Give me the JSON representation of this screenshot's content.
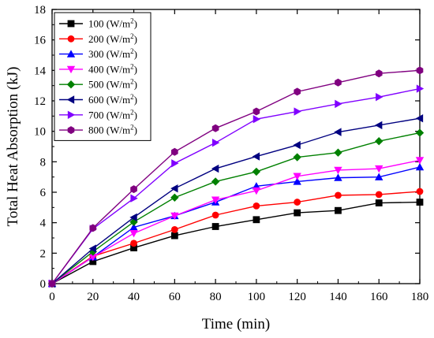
{
  "chart_data": {
    "type": "line",
    "xlabel": "Time (min)",
    "ylabel": "Total Heat Absorption (kJ)",
    "xlim": [
      0,
      180
    ],
    "ylim": [
      0,
      18
    ],
    "xticks": [
      0,
      20,
      40,
      60,
      80,
      100,
      120,
      140,
      160,
      180
    ],
    "yticks": [
      0,
      2,
      4,
      6,
      8,
      10,
      12,
      14,
      16,
      18
    ],
    "grid": false,
    "legend_position": "top-left",
    "x": [
      0,
      20,
      40,
      60,
      80,
      100,
      120,
      140,
      160,
      180
    ],
    "series": [
      {
        "name": "100 (W/m²)",
        "label_main": "100 (W/m",
        "label_sup": "2",
        "label_end": ")",
        "color": "#000000",
        "marker": "square",
        "values": [
          0,
          1.45,
          2.35,
          3.15,
          3.75,
          4.2,
          4.65,
          4.8,
          5.3,
          5.35
        ]
      },
      {
        "name": "200 (W/m²)",
        "label_main": "200 (W/m",
        "label_sup": "2",
        "label_end": ")",
        "color": "#ff0000",
        "marker": "circle",
        "values": [
          0,
          1.8,
          2.65,
          3.55,
          4.5,
          5.1,
          5.35,
          5.8,
          5.85,
          6.05
        ]
      },
      {
        "name": "300 (W/m²)",
        "label_main": "300 (W/m",
        "label_sup": "2",
        "label_end": ")",
        "color": "#0000ff",
        "marker": "triangle-up",
        "values": [
          0,
          1.75,
          3.7,
          4.45,
          5.35,
          6.4,
          6.7,
          6.95,
          7.0,
          7.65
        ]
      },
      {
        "name": "400 (W/m²)",
        "label_main": "400 (W/m",
        "label_sup": "2",
        "label_end": ")",
        "color": "#ff00ff",
        "marker": "triangle-down",
        "values": [
          0,
          1.75,
          3.3,
          4.45,
          5.5,
          6.1,
          7.05,
          7.45,
          7.55,
          8.1
        ]
      },
      {
        "name": "500 (W/m²)",
        "label_main": "500 (W/m",
        "label_sup": "2",
        "label_end": ")",
        "color": "#008000",
        "marker": "diamond",
        "values": [
          0,
          2.1,
          4.05,
          5.65,
          6.7,
          7.35,
          8.3,
          8.6,
          9.35,
          9.9
        ]
      },
      {
        "name": "600 (W/m²)",
        "label_main": "600 (W/m",
        "label_sup": "2",
        "label_end": ")",
        "color": "#000080",
        "marker": "triangle-left",
        "values": [
          0,
          2.3,
          4.35,
          6.25,
          7.55,
          8.35,
          9.1,
          9.95,
          10.4,
          10.85
        ]
      },
      {
        "name": "700 (W/m²)",
        "label_main": "700 (W/m",
        "label_sup": "2",
        "label_end": ")",
        "color": "#8000ff",
        "marker": "triangle-right",
        "values": [
          0,
          3.6,
          5.6,
          7.9,
          9.25,
          10.8,
          11.3,
          11.8,
          12.25,
          12.8
        ]
      },
      {
        "name": "800 (W/m²)",
        "label_main": "800 (W/m",
        "label_sup": "2",
        "label_end": ")",
        "color": "#800080",
        "marker": "hexagon",
        "values": [
          0,
          3.65,
          6.2,
          8.65,
          10.2,
          11.3,
          12.6,
          13.2,
          13.8,
          14.0
        ]
      }
    ]
  }
}
